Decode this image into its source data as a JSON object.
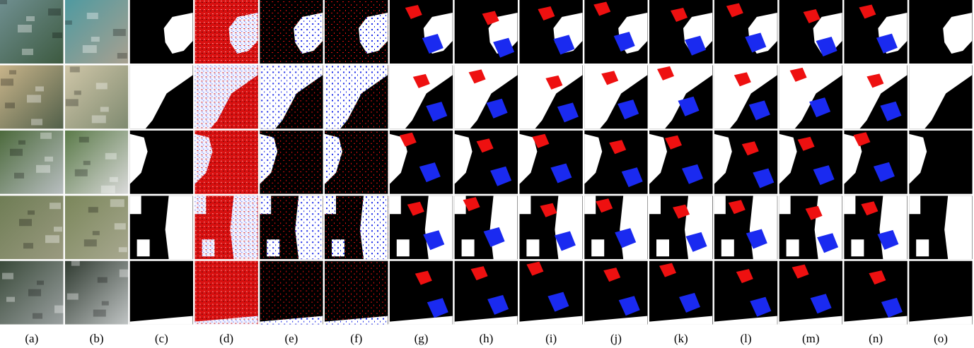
{
  "labels": [
    "(a)",
    "(b)",
    "(c)",
    "(d)",
    "(e)",
    "(f)",
    "(g)",
    "(h)",
    "(i)",
    "(j)",
    "(k)",
    "(l)",
    "(m)",
    "(n)",
    "(o)"
  ]
}
